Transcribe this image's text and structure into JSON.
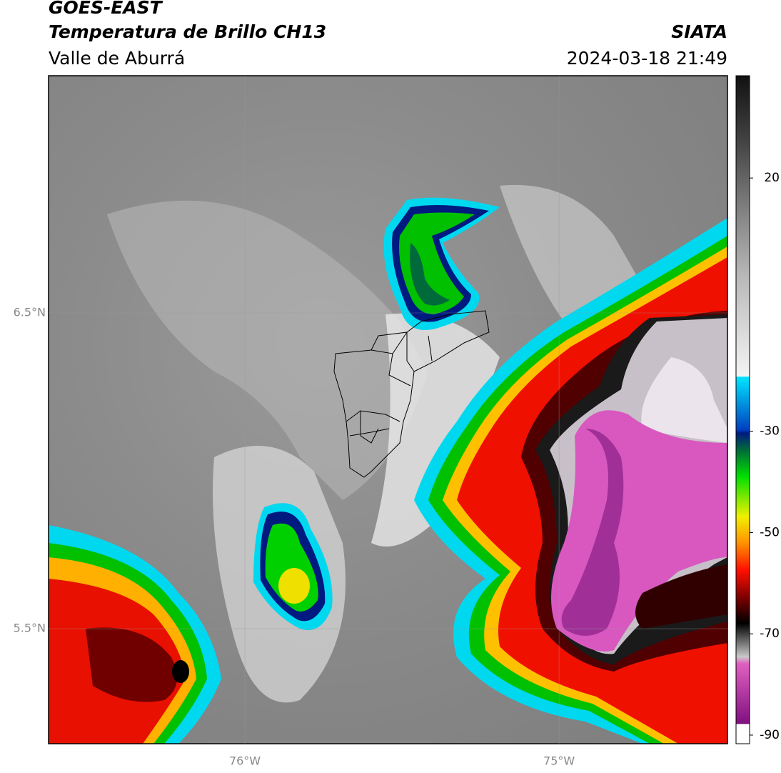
{
  "header": {
    "title": "GOES-EAST",
    "subtitle": "Temperatura de Brillo CH13",
    "region": "Valle de Aburrá",
    "source": "SIATA",
    "datetime": "2024-03-18 21:49"
  },
  "map": {
    "xlim": [
      -76.625,
      -74.464
    ],
    "ylim": [
      5.136,
      7.251
    ],
    "xticks": [
      {
        "value": -76,
        "label": "76°W"
      },
      {
        "value": -75,
        "label": "75°W"
      }
    ],
    "yticks": [
      {
        "value": 6.5,
        "label": "6.5°N"
      },
      {
        "value": 5.5,
        "label": "5.5°N"
      }
    ]
  },
  "colorbar": {
    "lim": [
      -91.7,
      40.2
    ],
    "ticks": [
      20,
      -30,
      -50,
      -70,
      -90
    ]
  }
}
